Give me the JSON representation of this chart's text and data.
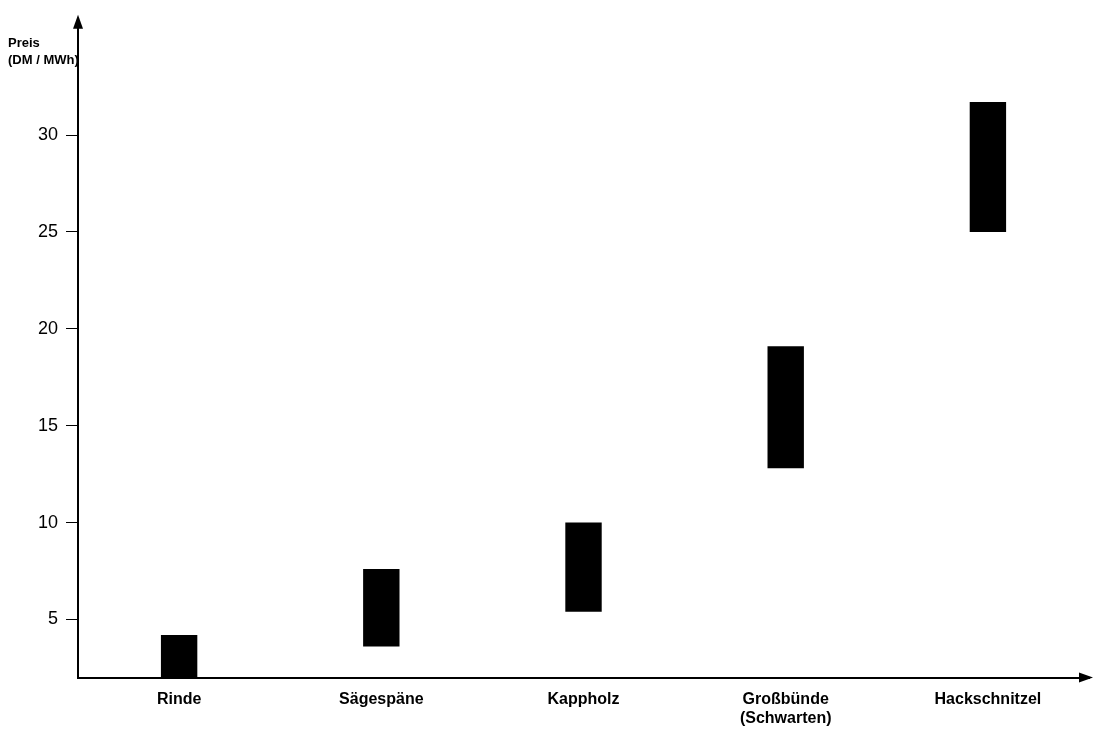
{
  "chart_data": {
    "type": "bar",
    "ylabel": "Preis\n(DM / MWh)",
    "categories": [
      "Rinde",
      "Sägespäne",
      "Kappholz",
      "Großbünde\n(Schwarten)",
      "Hackschnitzel"
    ],
    "base": [
      2,
      3.6,
      5.4,
      12.8,
      25
    ],
    "values": [
      2.2,
      4.0,
      4.6,
      6.3,
      6.7
    ],
    "color": "#000000",
    "ylim": [
      2,
      36
    ],
    "yticks": [
      5,
      10,
      15,
      20,
      25,
      30
    ],
    "grid": false,
    "legend": false
  }
}
